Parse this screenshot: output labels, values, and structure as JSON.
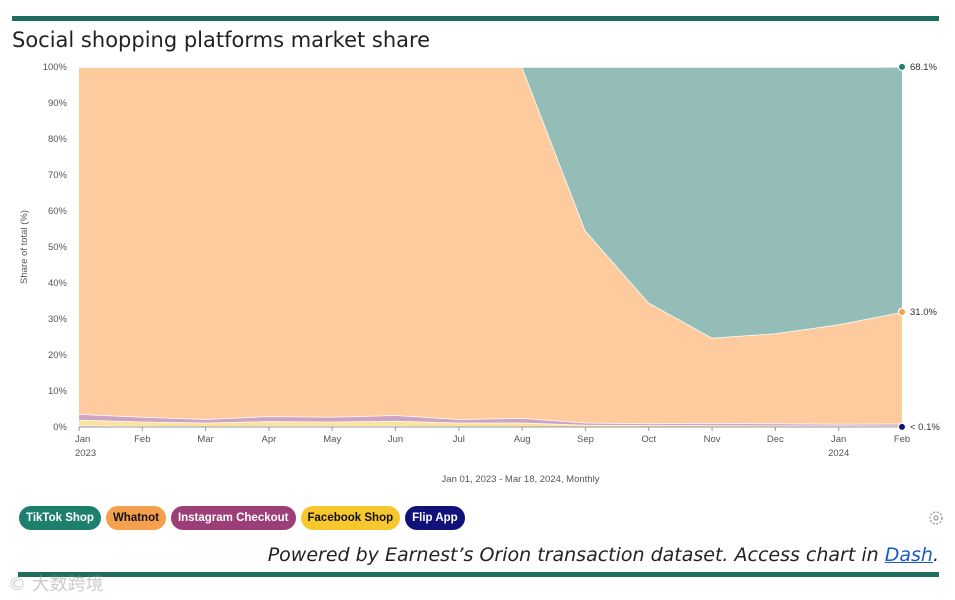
{
  "title": "Social shopping platforms market share",
  "footer": {
    "text": "Powered by Earnest’s Orion transaction dataset. Access chart in ",
    "link": "Dash",
    "end": "."
  },
  "watermark": "© 大数跨境",
  "colors": {
    "tiktok": "#93bdb6",
    "whatnot": "#fecb9e",
    "instagram": "#cfa3c2",
    "facebook": "#fbe39b",
    "flip": "#a8a8d6",
    "axis": "#555555",
    "grid": "#e8e8e8"
  },
  "legend": [
    {
      "label": "TikTok Shop",
      "bg": "#1d7f6e",
      "fg": "#ffffff"
    },
    {
      "label": "Whatnot",
      "bg": "#f5a04c",
      "fg": "#111111"
    },
    {
      "label": "Instagram Checkout",
      "bg": "#9c3f78",
      "fg": "#ffffff"
    },
    {
      "label": "Facebook Shop",
      "bg": "#f7c72e",
      "fg": "#111111"
    },
    {
      "label": "Flip App",
      "bg": "#10127a",
      "fg": "#ffffff"
    }
  ],
  "chart_data": {
    "type": "area",
    "stacked": true,
    "normalized": true,
    "title": "Social shopping platforms market share",
    "xlabel": "Jan 01, 2023 - Mar 18, 2024, Monthly",
    "ylabel": "Share of total (%)",
    "ylim": [
      0,
      100
    ],
    "yticks": [
      "0%",
      "10%",
      "20%",
      "30%",
      "40%",
      "50%",
      "60%",
      "70%",
      "80%",
      "90%",
      "100%"
    ],
    "categories": [
      "Jan",
      "Feb",
      "Mar",
      "Apr",
      "May",
      "Jun",
      "Jul",
      "Aug",
      "Sep",
      "Oct",
      "Nov",
      "Dec",
      "Jan",
      "Feb"
    ],
    "year_labels": [
      "2023",
      "",
      "",
      "",
      "",
      "",
      "",
      "",
      "",
      "",
      "",
      "",
      "2024",
      ""
    ],
    "series": [
      {
        "name": "Flip App",
        "key": "flip",
        "values": [
          0.4,
          0.3,
          0.2,
          0.3,
          0.3,
          0.3,
          0.2,
          0.2,
          0.1,
          0.1,
          0.1,
          0.1,
          0.1,
          0.05
        ]
      },
      {
        "name": "Facebook Shop",
        "key": "facebook",
        "values": [
          1.6,
          1.2,
          1.0,
          1.3,
          1.2,
          1.4,
          1.0,
          1.0,
          0.5,
          0.4,
          0.4,
          0.3,
          0.3,
          0.3
        ]
      },
      {
        "name": "Instagram Checkout",
        "key": "instagram",
        "values": [
          1.6,
          1.3,
          1.0,
          1.4,
          1.3,
          1.6,
          1.0,
          1.3,
          0.6,
          0.5,
          0.6,
          0.6,
          0.5,
          0.6
        ]
      },
      {
        "name": "Whatnot",
        "key": "whatnot",
        "values": [
          96.4,
          97.2,
          97.8,
          97.0,
          97.2,
          96.7,
          97.8,
          97.5,
          53.3,
          33.5,
          23.7,
          25.0,
          27.6,
          31.0
        ]
      },
      {
        "name": "TikTok Shop",
        "key": "tiktok",
        "values": [
          0,
          0,
          0,
          0,
          0,
          0,
          0,
          0,
          45.5,
          65.5,
          75.2,
          74.0,
          71.5,
          68.1
        ]
      }
    ],
    "end_labels": [
      {
        "series": "TikTok Shop",
        "text": "68.1%",
        "color": "#1d7f6e"
      },
      {
        "series": "Whatnot",
        "text": "31.0%",
        "color": "#f5a04c"
      },
      {
        "series": "Flip App",
        "text": "< 0.1%",
        "color": "#10127a"
      }
    ]
  }
}
